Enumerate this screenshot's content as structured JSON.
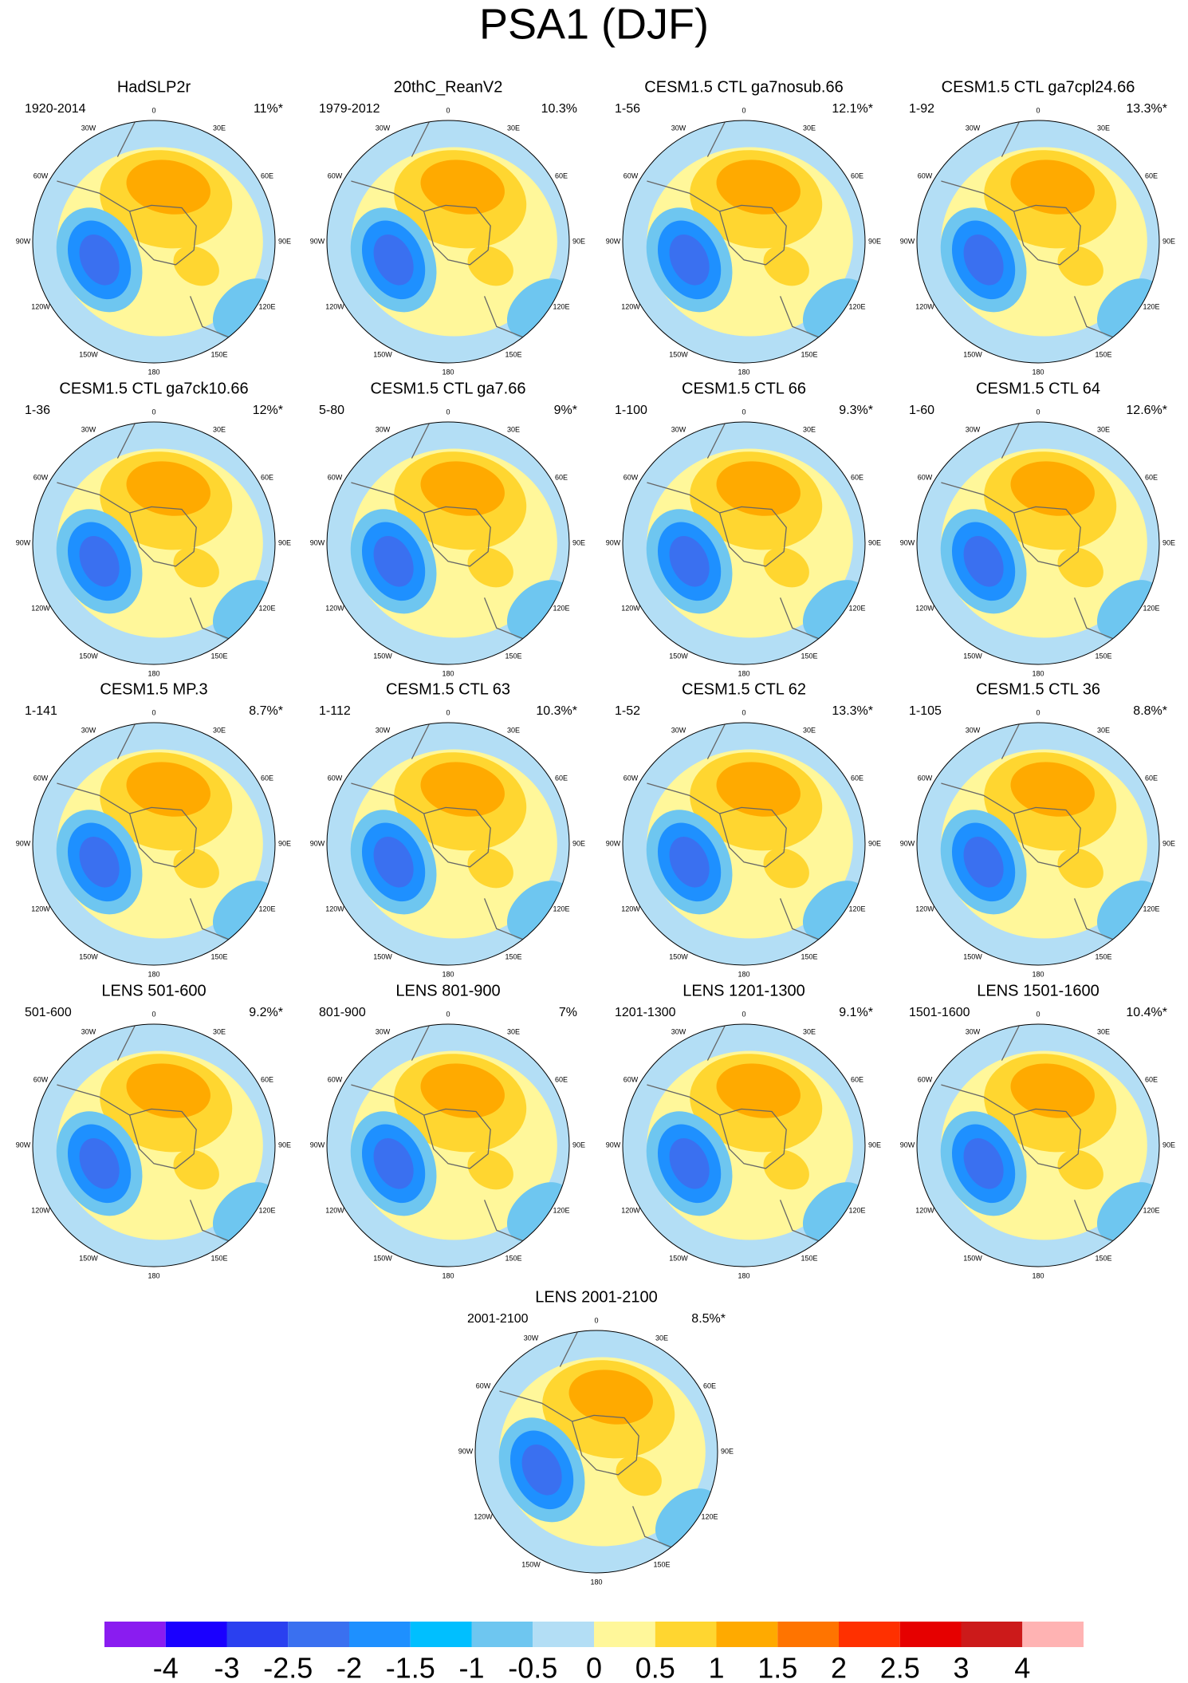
{
  "title": "PSA1 (DJF)",
  "panels": [
    {
      "title": "HadSLP2r",
      "period": "1920-2014",
      "variance": "11%*"
    },
    {
      "title": "20thC_ReanV2",
      "period": "1979-2012",
      "variance": "10.3%"
    },
    {
      "title": "CESM1.5 CTL ga7nosub.66",
      "period": "1-56",
      "variance": "12.1%*"
    },
    {
      "title": "CESM1.5 CTL ga7cpl24.66",
      "period": "1-92",
      "variance": "13.3%*"
    },
    {
      "title": "CESM1.5 CTL ga7ck10.66",
      "period": "1-36",
      "variance": "12%*"
    },
    {
      "title": "CESM1.5 CTL ga7.66",
      "period": "5-80",
      "variance": "9%*"
    },
    {
      "title": "CESM1.5 CTL 66",
      "period": "1-100",
      "variance": "9.3%*"
    },
    {
      "title": "CESM1.5 CTL 64",
      "period": "1-60",
      "variance": "12.6%*"
    },
    {
      "title": "CESM1.5 MP.3",
      "period": "1-141",
      "variance": "8.7%*"
    },
    {
      "title": "CESM1.5 CTL 63",
      "period": "1-112",
      "variance": "10.3%*"
    },
    {
      "title": "CESM1.5 CTL 62",
      "period": "1-52",
      "variance": "13.3%*"
    },
    {
      "title": "CESM1.5 CTL 36",
      "period": "1-105",
      "variance": "8.8%*"
    },
    {
      "title": "LENS 501-600",
      "period": "501-600",
      "variance": "9.2%*"
    },
    {
      "title": "LENS 801-900",
      "period": "801-900",
      "variance": "7%"
    },
    {
      "title": "LENS 1201-1300",
      "period": "1201-1300",
      "variance": "9.1%*"
    },
    {
      "title": "LENS 1501-1600",
      "period": "1501-1600",
      "variance": "10.4%*"
    },
    {
      "title": "LENS 2001-2100",
      "period": "2001-2100",
      "variance": "8.5%*"
    }
  ],
  "longitude_labels": [
    "0",
    "30E",
    "60E",
    "90E",
    "120E",
    "150E",
    "180",
    "150W",
    "120W",
    "90W",
    "60W",
    "30W"
  ],
  "colorbar": {
    "levels": [
      -4,
      -3,
      -2.5,
      -2,
      -1.5,
      -1,
      -0.5,
      0,
      0.5,
      1,
      1.5,
      2,
      2.5,
      3,
      4
    ],
    "colors": [
      "#8a1cf0",
      "#1a00ff",
      "#2a40f0",
      "#3a70f0",
      "#1e90ff",
      "#00bfff",
      "#6ec6f0",
      "#b3def5",
      "#fff79a",
      "#ffd630",
      "#ffaa00",
      "#ff7400",
      "#ff3000",
      "#e60000",
      "#cc1a1a",
      "#ffb3b3"
    ]
  }
}
